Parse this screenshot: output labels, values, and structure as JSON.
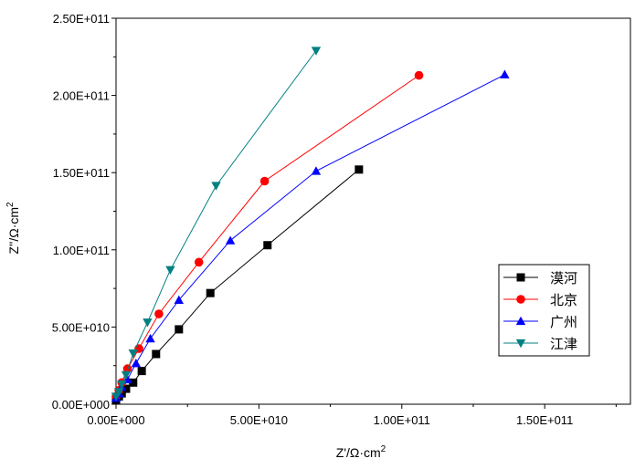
{
  "chart_data": {
    "type": "scatter",
    "title": "",
    "xlabel": "Z'/Ω·cm",
    "xlabel_sup": "2",
    "ylabel": "Z''/Ω·cm",
    "ylabel_sup": "2",
    "xlim": [
      0,
      180000000000
    ],
    "ylim": [
      0,
      250000000000
    ],
    "x_ticks": [
      0,
      50000000000,
      100000000000,
      150000000000
    ],
    "x_tick_labels": [
      "0.00E+000",
      "5.00E+010",
      "1.00E+011",
      "1.50E+011"
    ],
    "y_ticks": [
      0,
      50000000000,
      100000000000,
      150000000000,
      200000000000,
      250000000000
    ],
    "y_tick_labels": [
      "0.00E+000",
      "5.00E+010",
      "1.00E+011",
      "1.50E+011",
      "2.00E+011",
      "2.50E+011"
    ],
    "legend_position": "right-lower",
    "series": [
      {
        "name": "漠河",
        "color": "#000000",
        "marker": "square",
        "x": [
          0,
          1000000000,
          2000000000,
          3500000000,
          6000000000,
          9000000000,
          14000000000,
          22000000000,
          33000000000,
          53000000000,
          85000000000
        ],
        "y": [
          2500000000,
          5000000000,
          7000000000,
          10000000000,
          14000000000,
          21500000000,
          32500000000,
          48500000000,
          72000000000,
          103000000000,
          152000000000
        ]
      },
      {
        "name": "北京",
        "color": "#ff0000",
        "marker": "circle",
        "x": [
          0,
          1000000000,
          2000000000,
          4000000000,
          8000000000,
          15000000000,
          29000000000,
          52000000000,
          106000000000
        ],
        "y": [
          5000000000,
          9000000000,
          14000000000,
          23000000000,
          36000000000,
          58500000000,
          92000000000,
          144500000000,
          213000000000
        ]
      },
      {
        "name": "广州",
        "color": "#0000ff",
        "marker": "triangle-up",
        "x": [
          0,
          1000000000,
          2000000000,
          4000000000,
          7000000000,
          12000000000,
          22000000000,
          40000000000,
          70000000000,
          136000000000
        ],
        "y": [
          4000000000,
          7000000000,
          11000000000,
          16000000000,
          26500000000,
          42500000000,
          67500000000,
          106000000000,
          151000000000,
          213500000000
        ]
      },
      {
        "name": "江津",
        "color": "#008080",
        "marker": "triangle-down",
        "x": [
          0,
          1000000000,
          2000000000,
          3500000000,
          6000000000,
          11000000000,
          19000000000,
          35000000000,
          70000000000
        ],
        "y": [
          5000000000,
          8000000000,
          13000000000,
          19000000000,
          33000000000,
          53000000000,
          87000000000,
          141500000000,
          229000000000
        ]
      }
    ]
  }
}
